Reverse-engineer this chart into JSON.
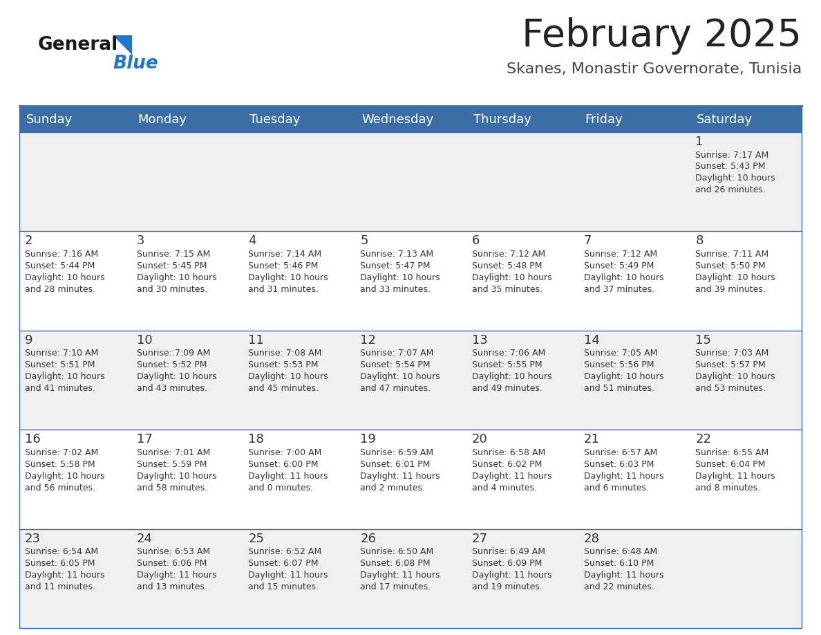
{
  "title": "February 2025",
  "subtitle": "Skanes, Monastir Governorate, Tunisia",
  "days_of_week": [
    "Sunday",
    "Monday",
    "Tuesday",
    "Wednesday",
    "Thursday",
    "Friday",
    "Saturday"
  ],
  "header_bg": "#3a6ea5",
  "header_text": "#ffffff",
  "row_bg_even": "#f0f0f0",
  "row_bg_odd": "#ffffff",
  "cell_border": "#3a6ea5",
  "day_num_color": "#333333",
  "info_color": "#333333",
  "title_color": "#222222",
  "subtitle_color": "#444444",
  "logo_general_color": "#1a1a1a",
  "logo_blue_color": "#2277cc",
  "calendar_data": [
    [
      null,
      null,
      null,
      null,
      null,
      null,
      {
        "day": 1,
        "sunrise": "7:17 AM",
        "sunset": "5:43 PM",
        "daylight_hours": 10,
        "daylight_minutes": 26
      }
    ],
    [
      {
        "day": 2,
        "sunrise": "7:16 AM",
        "sunset": "5:44 PM",
        "daylight_hours": 10,
        "daylight_minutes": 28
      },
      {
        "day": 3,
        "sunrise": "7:15 AM",
        "sunset": "5:45 PM",
        "daylight_hours": 10,
        "daylight_minutes": 30
      },
      {
        "day": 4,
        "sunrise": "7:14 AM",
        "sunset": "5:46 PM",
        "daylight_hours": 10,
        "daylight_minutes": 31
      },
      {
        "day": 5,
        "sunrise": "7:13 AM",
        "sunset": "5:47 PM",
        "daylight_hours": 10,
        "daylight_minutes": 33
      },
      {
        "day": 6,
        "sunrise": "7:12 AM",
        "sunset": "5:48 PM",
        "daylight_hours": 10,
        "daylight_minutes": 35
      },
      {
        "day": 7,
        "sunrise": "7:12 AM",
        "sunset": "5:49 PM",
        "daylight_hours": 10,
        "daylight_minutes": 37
      },
      {
        "day": 8,
        "sunrise": "7:11 AM",
        "sunset": "5:50 PM",
        "daylight_hours": 10,
        "daylight_minutes": 39
      }
    ],
    [
      {
        "day": 9,
        "sunrise": "7:10 AM",
        "sunset": "5:51 PM",
        "daylight_hours": 10,
        "daylight_minutes": 41
      },
      {
        "day": 10,
        "sunrise": "7:09 AM",
        "sunset": "5:52 PM",
        "daylight_hours": 10,
        "daylight_minutes": 43
      },
      {
        "day": 11,
        "sunrise": "7:08 AM",
        "sunset": "5:53 PM",
        "daylight_hours": 10,
        "daylight_minutes": 45
      },
      {
        "day": 12,
        "sunrise": "7:07 AM",
        "sunset": "5:54 PM",
        "daylight_hours": 10,
        "daylight_minutes": 47
      },
      {
        "day": 13,
        "sunrise": "7:06 AM",
        "sunset": "5:55 PM",
        "daylight_hours": 10,
        "daylight_minutes": 49
      },
      {
        "day": 14,
        "sunrise": "7:05 AM",
        "sunset": "5:56 PM",
        "daylight_hours": 10,
        "daylight_minutes": 51
      },
      {
        "day": 15,
        "sunrise": "7:03 AM",
        "sunset": "5:57 PM",
        "daylight_hours": 10,
        "daylight_minutes": 53
      }
    ],
    [
      {
        "day": 16,
        "sunrise": "7:02 AM",
        "sunset": "5:58 PM",
        "daylight_hours": 10,
        "daylight_minutes": 56
      },
      {
        "day": 17,
        "sunrise": "7:01 AM",
        "sunset": "5:59 PM",
        "daylight_hours": 10,
        "daylight_minutes": 58
      },
      {
        "day": 18,
        "sunrise": "7:00 AM",
        "sunset": "6:00 PM",
        "daylight_hours": 11,
        "daylight_minutes": 0
      },
      {
        "day": 19,
        "sunrise": "6:59 AM",
        "sunset": "6:01 PM",
        "daylight_hours": 11,
        "daylight_minutes": 2
      },
      {
        "day": 20,
        "sunrise": "6:58 AM",
        "sunset": "6:02 PM",
        "daylight_hours": 11,
        "daylight_minutes": 4
      },
      {
        "day": 21,
        "sunrise": "6:57 AM",
        "sunset": "6:03 PM",
        "daylight_hours": 11,
        "daylight_minutes": 6
      },
      {
        "day": 22,
        "sunrise": "6:55 AM",
        "sunset": "6:04 PM",
        "daylight_hours": 11,
        "daylight_minutes": 8
      }
    ],
    [
      {
        "day": 23,
        "sunrise": "6:54 AM",
        "sunset": "6:05 PM",
        "daylight_hours": 11,
        "daylight_minutes": 11
      },
      {
        "day": 24,
        "sunrise": "6:53 AM",
        "sunset": "6:06 PM",
        "daylight_hours": 11,
        "daylight_minutes": 13
      },
      {
        "day": 25,
        "sunrise": "6:52 AM",
        "sunset": "6:07 PM",
        "daylight_hours": 11,
        "daylight_minutes": 15
      },
      {
        "day": 26,
        "sunrise": "6:50 AM",
        "sunset": "6:08 PM",
        "daylight_hours": 11,
        "daylight_minutes": 17
      },
      {
        "day": 27,
        "sunrise": "6:49 AM",
        "sunset": "6:09 PM",
        "daylight_hours": 11,
        "daylight_minutes": 19
      },
      {
        "day": 28,
        "sunrise": "6:48 AM",
        "sunset": "6:10 PM",
        "daylight_hours": 11,
        "daylight_minutes": 22
      },
      null
    ]
  ]
}
